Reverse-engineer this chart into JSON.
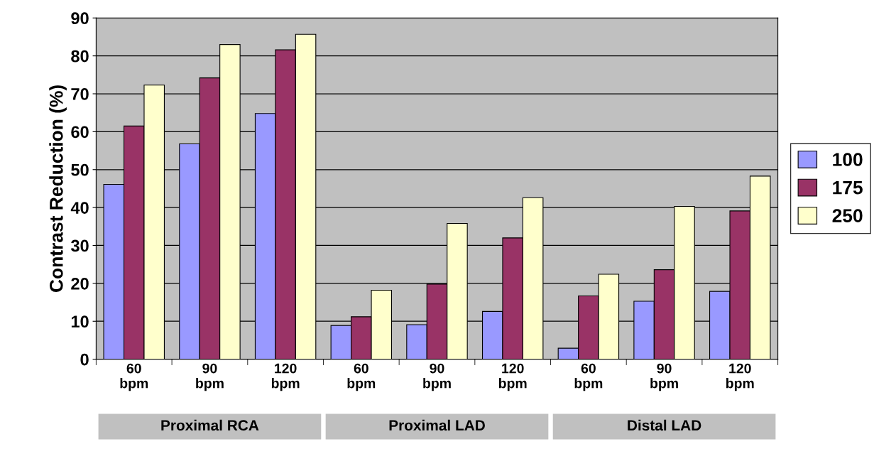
{
  "chart_data": {
    "type": "bar",
    "ylabel": "Contrast Reduction (%)",
    "categories": [
      "60\nbpm",
      "90\nbpm",
      "120\nbpm",
      "60\nbpm",
      "90\nbpm",
      "120\nbpm",
      "60\nbpm",
      "90\nbpm",
      "120\nbpm"
    ],
    "series": [
      {
        "name": "100",
        "color": "#9999ff",
        "values": [
          46.1,
          56.8,
          64.8,
          8.9,
          9.1,
          12.6,
          2.9,
          15.3,
          17.9
        ]
      },
      {
        "name": "175",
        "color": "#993366",
        "values": [
          61.5,
          74.2,
          81.6,
          11.2,
          19.8,
          32.0,
          16.7,
          23.6,
          39.1
        ]
      },
      {
        "name": "250",
        "color": "#ffffcc",
        "values": [
          72.3,
          83.0,
          85.7,
          18.2,
          35.8,
          42.6,
          22.4,
          40.3,
          48.3
        ]
      }
    ],
    "annotations": [
      "Proximal RCA",
      "Proximal LAD",
      "Distal LAD"
    ],
    "ylim": [
      0,
      90
    ],
    "yticks": [
      0,
      10,
      20,
      30,
      40,
      50,
      60,
      70,
      80,
      90
    ],
    "grid": "y",
    "legend": "right"
  }
}
